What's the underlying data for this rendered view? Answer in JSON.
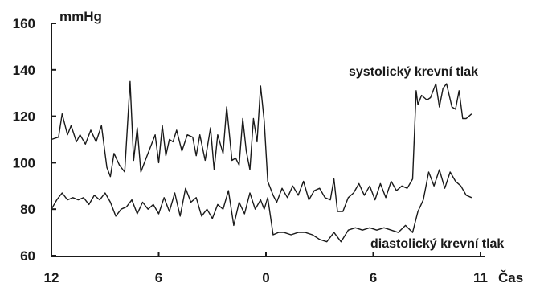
{
  "chart_data": {
    "type": "line",
    "ylabel": "mmHg",
    "xlabel": "Čas",
    "ylim": [
      60,
      160
    ],
    "yticks": [
      60,
      80,
      100,
      120,
      140,
      160
    ],
    "xlim": [
      0,
      24
    ],
    "xticks": [
      {
        "x": 0,
        "label": "12"
      },
      {
        "x": 6,
        "label": "6"
      },
      {
        "x": 12,
        "label": "0"
      },
      {
        "x": 18,
        "label": "6"
      },
      {
        "x": 24,
        "label": "11"
      }
    ],
    "grid": false,
    "series": [
      {
        "name": "systolický krevní tlak",
        "x": [
          0,
          0.4,
          0.6,
          0.9,
          1.1,
          1.4,
          1.6,
          1.9,
          2.2,
          2.5,
          2.8,
          3.1,
          3.3,
          3.5,
          3.8,
          4.1,
          4.4,
          4.6,
          4.8,
          5.0,
          5.2,
          5.5,
          5.8,
          6.0,
          6.2,
          6.4,
          6.6,
          6.8,
          7.0,
          7.3,
          7.6,
          7.9,
          8.1,
          8.3,
          8.6,
          8.9,
          9.1,
          9.3,
          9.6,
          9.8,
          10.1,
          10.3,
          10.5,
          10.7,
          10.9,
          11.1,
          11.3,
          11.5,
          11.7,
          11.9,
          12.1,
          12.4,
          12.6,
          12.9,
          13.2,
          13.5,
          13.8,
          14.1,
          14.4,
          14.7,
          15.0,
          15.3,
          15.6,
          15.8,
          16.0,
          16.3,
          16.6,
          16.9,
          17.2,
          17.5,
          17.8,
          18.1,
          18.4,
          18.7,
          19.0,
          19.3,
          19.6,
          19.9,
          20.2,
          20.4,
          20.5,
          20.7,
          21.0,
          21.2,
          21.5,
          21.7,
          21.9,
          22.1,
          22.4,
          22.6,
          22.8,
          23.0,
          23.2,
          23.5
        ],
        "values": [
          110,
          111,
          121,
          112,
          116,
          109,
          112,
          108,
          114,
          109,
          116,
          98,
          94,
          104,
          99,
          96,
          135,
          101,
          115,
          96,
          100,
          106,
          112,
          100,
          116,
          103,
          110,
          109,
          114,
          105,
          112,
          111,
          103,
          112,
          101,
          115,
          97,
          112,
          104,
          124,
          101,
          102,
          99,
          119,
          105,
          97,
          119,
          109,
          133,
          118,
          92,
          86,
          83,
          89,
          85,
          90,
          86,
          92,
          84,
          88,
          89,
          85,
          84,
          93,
          79,
          79,
          85,
          87,
          91,
          86,
          90,
          84,
          91,
          85,
          92,
          88,
          90,
          89,
          93,
          131,
          125,
          129,
          127,
          128,
          134,
          124,
          132,
          134,
          124,
          123,
          131,
          119,
          119,
          121
        ]
      },
      {
        "name": "diastolický krevní tlak",
        "x": [
          0,
          0.3,
          0.6,
          0.9,
          1.2,
          1.5,
          1.8,
          2.1,
          2.4,
          2.7,
          3.0,
          3.3,
          3.6,
          3.9,
          4.2,
          4.5,
          4.8,
          5.1,
          5.4,
          5.7,
          6.0,
          6.3,
          6.6,
          6.9,
          7.2,
          7.5,
          7.8,
          8.1,
          8.4,
          8.7,
          9.0,
          9.3,
          9.6,
          9.9,
          10.2,
          10.5,
          10.8,
          11.1,
          11.4,
          11.7,
          11.9,
          12.1,
          12.4,
          12.7,
          13.0,
          13.4,
          13.8,
          14.2,
          14.6,
          15.0,
          15.4,
          15.8,
          16.2,
          16.6,
          17.0,
          17.4,
          17.8,
          18.2,
          18.6,
          19.0,
          19.4,
          19.8,
          20.2,
          20.5,
          20.8,
          21.1,
          21.4,
          21.7,
          22.0,
          22.3,
          22.6,
          22.9,
          23.2,
          23.5
        ],
        "values": [
          80,
          84,
          87,
          84,
          85,
          84,
          85,
          82,
          86,
          84,
          87,
          83,
          77,
          80,
          81,
          84,
          78,
          83,
          80,
          82,
          78,
          85,
          79,
          87,
          77,
          89,
          83,
          85,
          77,
          80,
          76,
          82,
          80,
          88,
          73,
          83,
          78,
          87,
          80,
          84,
          80,
          85,
          69,
          70,
          70,
          69,
          70,
          70,
          69,
          67,
          66,
          70,
          66,
          71,
          72,
          71,
          72,
          71,
          72,
          71,
          70,
          73,
          70,
          79,
          84,
          96,
          90,
          97,
          89,
          96,
          92,
          90,
          86,
          85
        ]
      }
    ],
    "annotations": [
      {
        "series": 0,
        "text": "systolický krevní tlak"
      },
      {
        "series": 1,
        "text": "diastolický krevní tlak"
      }
    ]
  }
}
